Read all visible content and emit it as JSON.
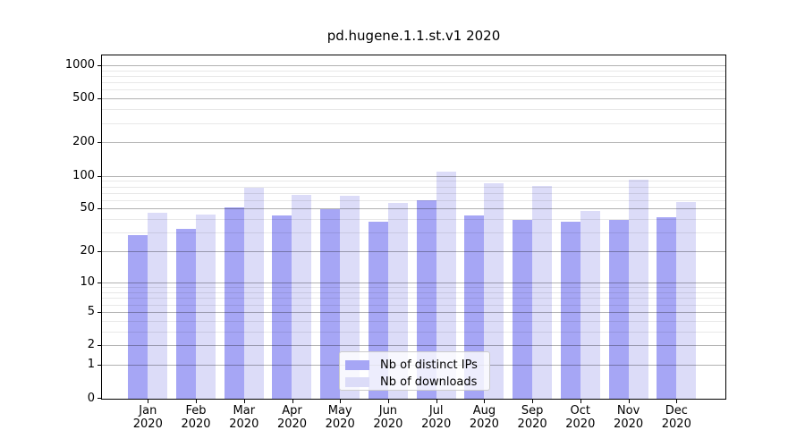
{
  "chart_data": {
    "type": "bar",
    "title": "pd.hugene.1.1.st.v1 2020",
    "categories": [
      "Jan 2020",
      "Feb 2020",
      "Mar 2020",
      "Apr 2020",
      "May 2020",
      "Jun 2020",
      "Jul 2020",
      "Aug 2020",
      "Sep 2020",
      "Oct 2020",
      "Nov 2020",
      "Dec 2020"
    ],
    "series": [
      {
        "key": "distinct-ips",
        "name": "Nb of distinct IPs",
        "color": "#a6a6f5",
        "values": [
          29,
          33,
          52,
          44,
          50,
          38,
          60,
          44,
          40,
          38,
          40,
          42
        ]
      },
      {
        "key": "downloads",
        "name": "Nb of downloads",
        "color": "#dcdcf8",
        "values": [
          46,
          45,
          79,
          68,
          66,
          57,
          109,
          87,
          82,
          48,
          93,
          58
        ]
      }
    ],
    "xlabel": "",
    "ylabel": "",
    "yscale": "log10(value+1)",
    "ylim": [
      0,
      1200
    ],
    "y_major_ticks": [
      1000,
      500,
      200,
      100,
      50,
      20,
      10,
      5,
      2,
      1,
      0
    ],
    "y_minor_ticks": [
      3,
      4,
      6,
      7,
      8,
      9,
      30,
      40,
      60,
      70,
      80,
      90,
      300,
      400,
      600,
      700,
      800,
      900
    ],
    "grid": "major and minor horizontal gridlines, drawn over bars",
    "legend_position": "lower center inside axes"
  },
  "colors": {
    "background": "#ffffff",
    "spine": "#000000",
    "grid_major": "rgba(0,0,0,0.30)",
    "grid_minor": "rgba(0,0,0,0.09)",
    "bar_distinct_ips": "#a6a6f5",
    "bar_downloads": "#dcdcf8",
    "legend_border": "#cccccc",
    "legend_background": "rgba(255,255,255,0.8)",
    "text": "#000000"
  }
}
